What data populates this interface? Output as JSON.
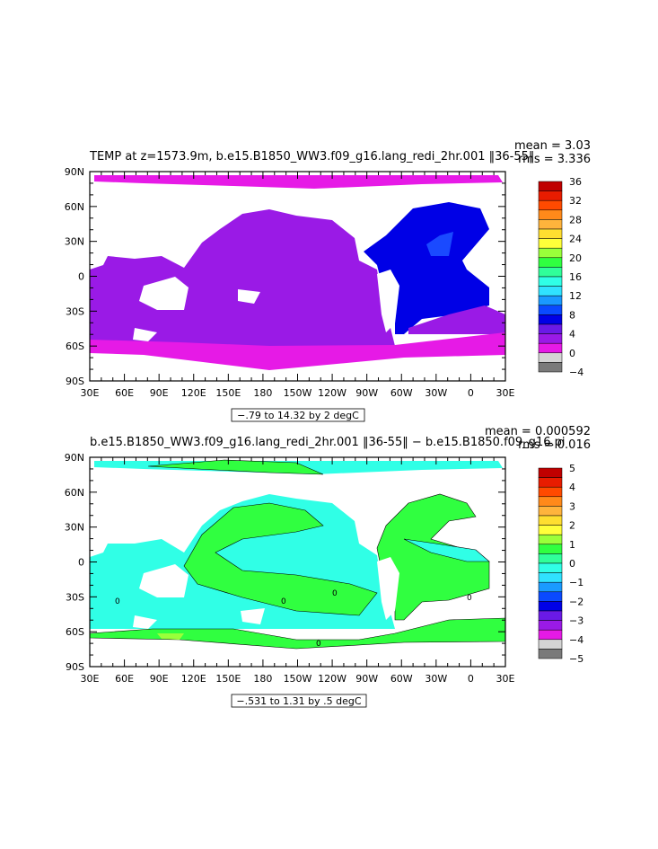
{
  "panels": [
    {
      "title": "TEMP at z=1573.9m, b.e15.B1850_WW3.f09_g16.lang_redi_2hr.001 ‖36-55‖",
      "stat_mean": "mean = 3.03",
      "stat_rms": "rms = 3.336",
      "range_label": "−.79 to 14.32 by 2 degC",
      "lat_labels": [
        "90N",
        "60N",
        "30N",
        "0",
        "30S",
        "60S",
        "90S"
      ],
      "lon_labels": [
        "30E",
        "60E",
        "90E",
        "120E",
        "150E",
        "180",
        "150W",
        "120W",
        "90W",
        "60W",
        "30W",
        "0",
        "30E"
      ],
      "colorbar_labels": [
        "36",
        "32",
        "28",
        "24",
        "20",
        "16",
        "12",
        "8",
        "4",
        "0",
        "−4"
      ],
      "colorbar_colors": [
        "#c00000",
        "#e81c00",
        "#ff4a00",
        "#ff8a1a",
        "#ffb43c",
        "#ffde30",
        "#ffff3a",
        "#9aff3a",
        "#30ff40",
        "#30ff9a",
        "#30ffe6",
        "#30e2ff",
        "#1a9aff",
        "#0a4aff",
        "#0000e6",
        "#6a1ae6",
        "#9a1ae6",
        "#e61ae6",
        "#d4d4d4",
        "#7a7a7a"
      ]
    },
    {
      "title": "b.e15.B1850_WW3.f09_g16.lang_redi_2hr.001 ‖36-55‖ − b.e15.B1850.f09_g16.pi",
      "stat_mean": "mean = 0.000592",
      "stat_rms": "rms = 0.016",
      "range_label": "−.531 to 1.31 by .5 degC",
      "lat_labels": [
        "90N",
        "60N",
        "30N",
        "0",
        "30S",
        "60S",
        "90S"
      ],
      "lon_labels": [
        "30E",
        "60E",
        "90E",
        "120E",
        "150E",
        "180",
        "150W",
        "120W",
        "90W",
        "60W",
        "30W",
        "0",
        "30E"
      ],
      "colorbar_labels": [
        "5",
        "4",
        "3",
        "2",
        "1",
        "0",
        "−1",
        "−2",
        "−3",
        "−4",
        "−5"
      ],
      "colorbar_colors": [
        "#c00000",
        "#e81c00",
        "#ff4a00",
        "#ff8a1a",
        "#ffb43c",
        "#ffde30",
        "#ffff3a",
        "#9aff3a",
        "#30ff40",
        "#30ff9a",
        "#30ffe6",
        "#30e2ff",
        "#1a9aff",
        "#0a4aff",
        "#0000e6",
        "#6a1ae6",
        "#9a1ae6",
        "#e61ae6",
        "#d4d4d4",
        "#7a7a7a"
      ],
      "contour_labels": [
        "0",
        "0",
        "0",
        "0",
        "0"
      ]
    }
  ]
}
